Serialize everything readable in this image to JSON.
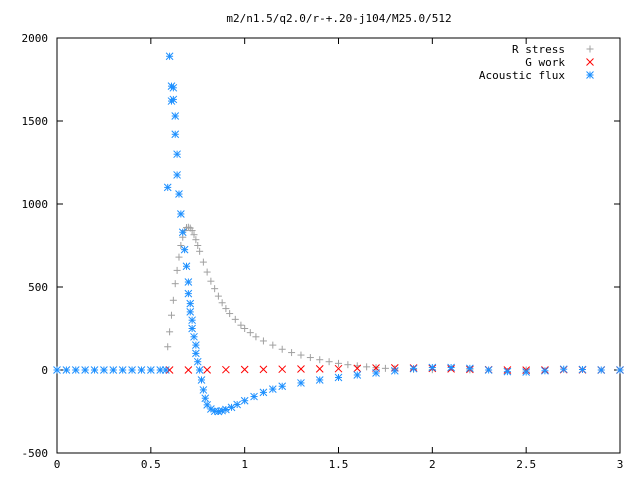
{
  "chart_data": {
    "type": "scatter",
    "title": "m2/n1.5/q2.0/r-+.20-j104/M25.0/512",
    "xlabel": "",
    "ylabel": "",
    "xlim": [
      0,
      3
    ],
    "ylim": [
      -500,
      2000
    ],
    "x_ticks": [
      0,
      0.5,
      1,
      1.5,
      2,
      2.5,
      3
    ],
    "x_tick_labels": [
      "0",
      "0.5",
      "1",
      "1.5",
      "2",
      "2.5",
      "3"
    ],
    "y_ticks": [
      -500,
      0,
      500,
      1000,
      1500,
      2000
    ],
    "y_tick_labels": [
      "-500",
      "0",
      "500",
      "1000",
      "1500",
      "2000"
    ],
    "grid": false,
    "legend_position": "top-right",
    "series": [
      {
        "name": "R stress",
        "marker": "plus",
        "color": "#a0a0a0",
        "points": [
          [
            0.59,
            140
          ],
          [
            0.6,
            230
          ],
          [
            0.61,
            330
          ],
          [
            0.62,
            420
          ],
          [
            0.63,
            520
          ],
          [
            0.64,
            600
          ],
          [
            0.65,
            680
          ],
          [
            0.66,
            750
          ],
          [
            0.67,
            800
          ],
          [
            0.68,
            840
          ],
          [
            0.69,
            858
          ],
          [
            0.7,
            860
          ],
          [
            0.71,
            855
          ],
          [
            0.72,
            840
          ],
          [
            0.73,
            815
          ],
          [
            0.74,
            785
          ],
          [
            0.75,
            750
          ],
          [
            0.76,
            715
          ],
          [
            0.78,
            650
          ],
          [
            0.8,
            590
          ],
          [
            0.82,
            535
          ],
          [
            0.84,
            490
          ],
          [
            0.86,
            445
          ],
          [
            0.88,
            405
          ],
          [
            0.9,
            370
          ],
          [
            0.92,
            340
          ],
          [
            0.95,
            305
          ],
          [
            0.98,
            270
          ],
          [
            1.0,
            250
          ],
          [
            1.03,
            225
          ],
          [
            1.06,
            200
          ],
          [
            1.1,
            175
          ],
          [
            1.15,
            150
          ],
          [
            1.2,
            125
          ],
          [
            1.25,
            105
          ],
          [
            1.3,
            90
          ],
          [
            1.35,
            75
          ],
          [
            1.4,
            62
          ],
          [
            1.45,
            50
          ],
          [
            1.5,
            40
          ],
          [
            1.55,
            32
          ],
          [
            1.6,
            25
          ],
          [
            1.65,
            19
          ],
          [
            1.7,
            14
          ],
          [
            1.75,
            10
          ],
          [
            1.8,
            7
          ],
          [
            1.9,
            4
          ],
          [
            2.0,
            2
          ],
          [
            2.2,
            1
          ],
          [
            2.5,
            0
          ],
          [
            3.0,
            0
          ]
        ]
      },
      {
        "name": "G work",
        "marker": "cross",
        "color": "#ff0000",
        "points": [
          [
            0.6,
            0
          ],
          [
            0.7,
            0
          ],
          [
            0.8,
            1
          ],
          [
            0.9,
            2
          ],
          [
            1.0,
            3
          ],
          [
            1.1,
            4
          ],
          [
            1.2,
            5
          ],
          [
            1.3,
            6
          ],
          [
            1.4,
            7
          ],
          [
            1.5,
            8
          ],
          [
            1.6,
            10
          ],
          [
            1.7,
            12
          ],
          [
            1.8,
            13
          ],
          [
            1.9,
            12
          ],
          [
            2.0,
            10
          ],
          [
            2.1,
            7
          ],
          [
            2.2,
            4
          ],
          [
            2.3,
            2
          ],
          [
            2.4,
            0
          ],
          [
            2.5,
            -1
          ],
          [
            2.6,
            0
          ],
          [
            2.7,
            2
          ],
          [
            2.8,
            1
          ],
          [
            2.9,
            0
          ],
          [
            3.0,
            0
          ]
        ]
      },
      {
        "name": "Acoustic flux",
        "marker": "star",
        "color": "#1e90ff",
        "points": [
          [
            0,
            0
          ],
          [
            0.05,
            0
          ],
          [
            0.1,
            0
          ],
          [
            0.15,
            0
          ],
          [
            0.2,
            0
          ],
          [
            0.25,
            0
          ],
          [
            0.3,
            0
          ],
          [
            0.35,
            0
          ],
          [
            0.4,
            0
          ],
          [
            0.45,
            0
          ],
          [
            0.5,
            0
          ],
          [
            0.55,
            0
          ],
          [
            0.58,
            0
          ],
          [
            0.59,
            1100
          ],
          [
            0.6,
            1890
          ],
          [
            0.61,
            1710
          ],
          [
            0.61,
            1620
          ],
          [
            0.62,
            1700
          ],
          [
            0.62,
            1630
          ],
          [
            0.63,
            1530
          ],
          [
            0.63,
            1420
          ],
          [
            0.64,
            1300
          ],
          [
            0.64,
            1175
          ],
          [
            0.65,
            1060
          ],
          [
            0.66,
            940
          ],
          [
            0.67,
            830
          ],
          [
            0.68,
            725
          ],
          [
            0.69,
            625
          ],
          [
            0.7,
            530
          ],
          [
            0.7,
            460
          ],
          [
            0.71,
            400
          ],
          [
            0.71,
            350
          ],
          [
            0.72,
            300
          ],
          [
            0.72,
            250
          ],
          [
            0.73,
            200
          ],
          [
            0.74,
            150
          ],
          [
            0.74,
            100
          ],
          [
            0.75,
            50
          ],
          [
            0.76,
            0
          ],
          [
            0.77,
            -60
          ],
          [
            0.78,
            -120
          ],
          [
            0.79,
            -170
          ],
          [
            0.8,
            -210
          ],
          [
            0.82,
            -235
          ],
          [
            0.84,
            -248
          ],
          [
            0.86,
            -250
          ],
          [
            0.88,
            -245
          ],
          [
            0.9,
            -238
          ],
          [
            0.93,
            -225
          ],
          [
            0.96,
            -208
          ],
          [
            1.0,
            -185
          ],
          [
            1.05,
            -160
          ],
          [
            1.1,
            -135
          ],
          [
            1.15,
            -115
          ],
          [
            1.2,
            -98
          ],
          [
            1.3,
            -78
          ],
          [
            1.4,
            -60
          ],
          [
            1.5,
            -45
          ],
          [
            1.6,
            -30
          ],
          [
            1.7,
            -18
          ],
          [
            1.8,
            -5
          ],
          [
            1.9,
            8
          ],
          [
            2.0,
            15
          ],
          [
            2.1,
            15
          ],
          [
            2.2,
            10
          ],
          [
            2.3,
            0
          ],
          [
            2.4,
            -10
          ],
          [
            2.5,
            -12
          ],
          [
            2.6,
            -5
          ],
          [
            2.7,
            5
          ],
          [
            2.8,
            3
          ],
          [
            2.9,
            0
          ],
          [
            3.0,
            0
          ]
        ]
      }
    ]
  }
}
